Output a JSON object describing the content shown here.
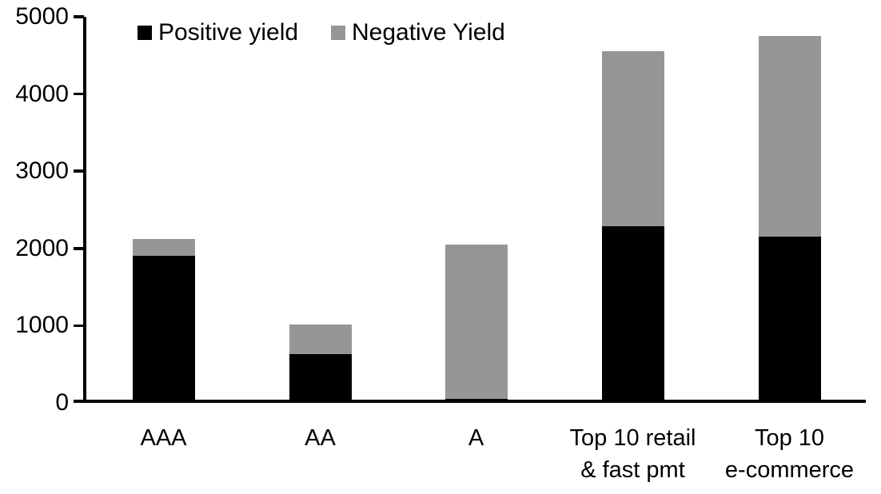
{
  "legend": {
    "items": [
      {
        "label": "Positive yield",
        "color": "#000000"
      },
      {
        "label": "Negative Yield",
        "color": "#969696"
      }
    ]
  },
  "chart_data": {
    "type": "bar",
    "stacked": true,
    "title": "",
    "xlabel": "",
    "ylabel": "",
    "categories": [
      "AAA",
      "AA",
      "A",
      "Top 10 retail\n& fast pmt",
      "Top 10\ne-commerce"
    ],
    "series": [
      {
        "name": "Positive yield",
        "color": "#000000",
        "values": [
          1900,
          630,
          50,
          2290,
          2150
        ]
      },
      {
        "name": "Negative Yield",
        "color": "#969696",
        "values": [
          220,
          380,
          2000,
          2270,
          2600
        ]
      }
    ],
    "totals": [
      2120,
      1010,
      2050,
      4560,
      4750
    ],
    "ylim": [
      0,
      5000
    ],
    "yticks": [
      0,
      1000,
      2000,
      3000,
      4000,
      5000
    ],
    "grid": false,
    "legend_position": "top"
  }
}
